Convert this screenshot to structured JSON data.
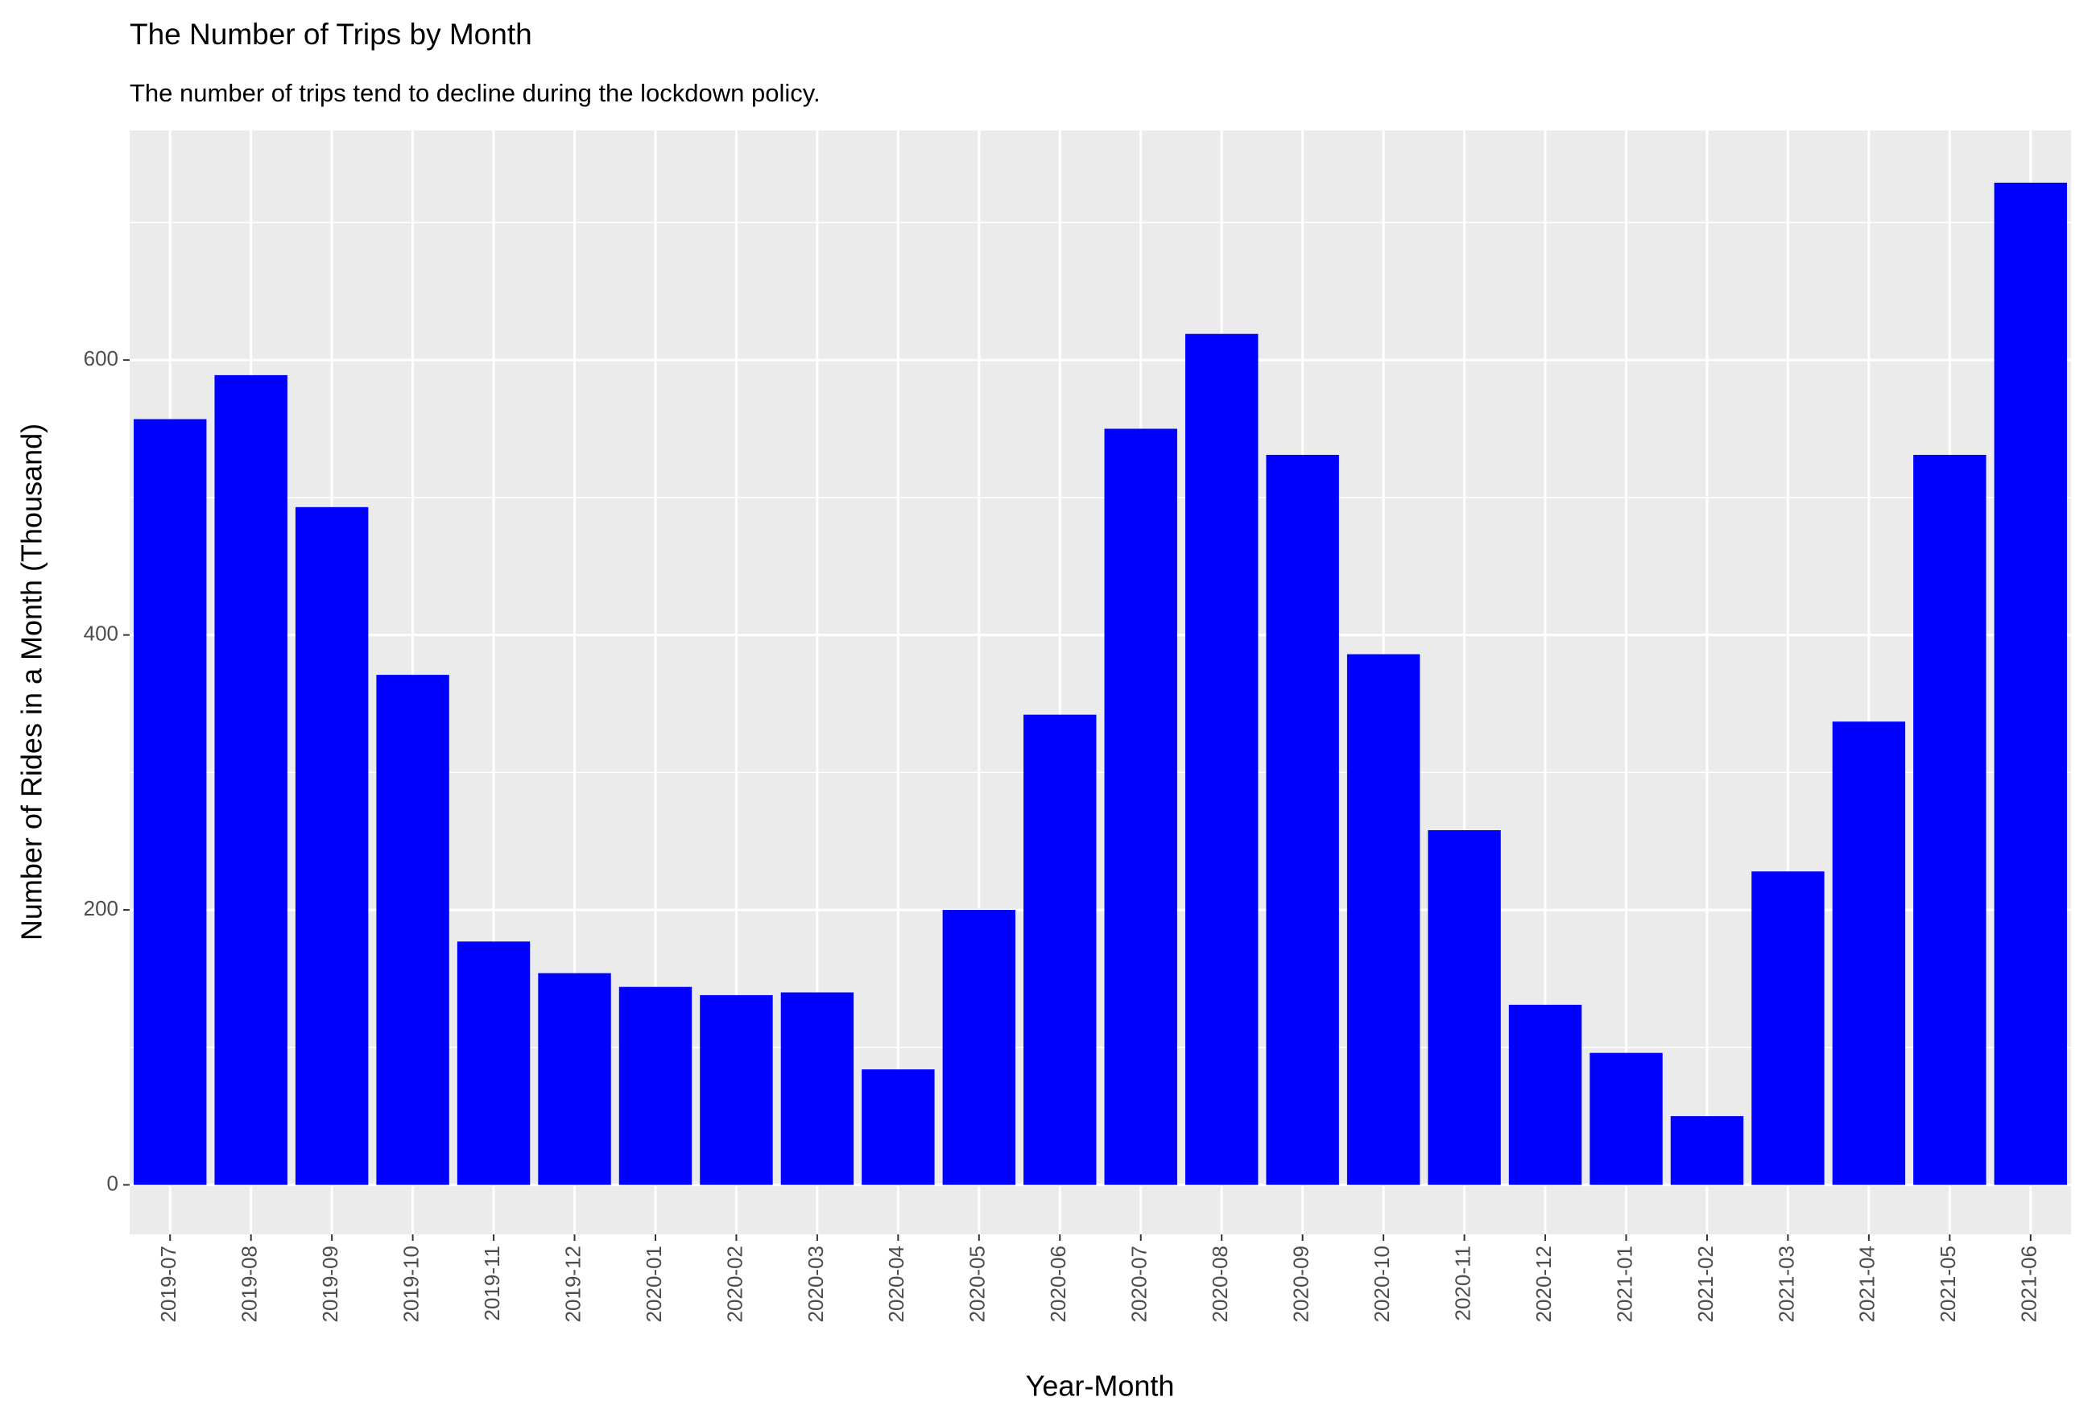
{
  "chart_data": {
    "type": "bar",
    "title": "The Number of Trips by Month",
    "subtitle": "The number of trips tend to decline during the lockdown policy.",
    "x_label": "Year-Month",
    "y_label": "Number of Rides in a Month (Thousand)",
    "categories": [
      "2019-07",
      "2019-08",
      "2019-09",
      "2019-10",
      "2019-11",
      "2019-12",
      "2020-01",
      "2020-02",
      "2020-03",
      "2020-04",
      "2020-05",
      "2020-06",
      "2020-07",
      "2020-08",
      "2020-09",
      "2020-10",
      "2020-11",
      "2020-12",
      "2021-01",
      "2021-02",
      "2021-03",
      "2021-04",
      "2021-05",
      "2021-06"
    ],
    "values": [
      557,
      589,
      493,
      371,
      177,
      154,
      144,
      138,
      140,
      84,
      200,
      342,
      550,
      619,
      531,
      386,
      258,
      131,
      96,
      50,
      228,
      337,
      531,
      729
    ],
    "color": "#0000ff",
    "ylim": [
      -36,
      767
    ],
    "yticks": [
      0,
      200,
      400,
      600
    ],
    "grid": true
  }
}
